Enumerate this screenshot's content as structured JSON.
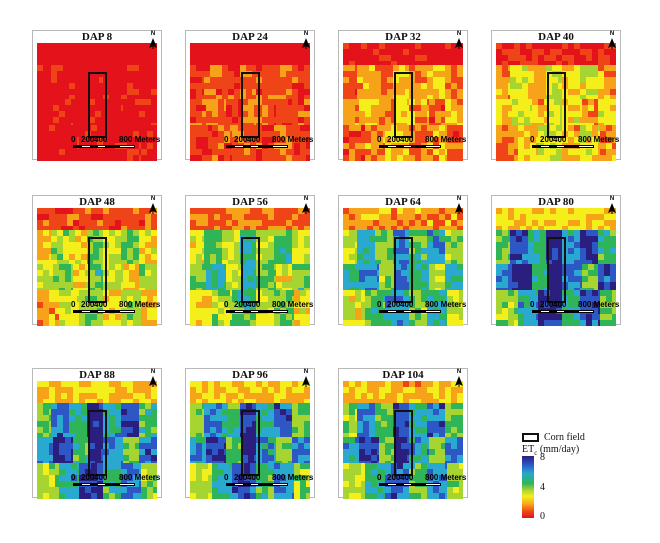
{
  "panels": [
    {
      "title": "DAP 8",
      "mix": 0.05
    },
    {
      "title": "DAP 24",
      "mix": 0.18
    },
    {
      "title": "DAP 32",
      "mix": 0.28
    },
    {
      "title": "DAP 40",
      "mix": 0.38
    },
    {
      "title": "DAP 48",
      "mix": 0.48
    },
    {
      "title": "DAP 56",
      "mix": 0.56
    },
    {
      "title": "DAP 64",
      "mix": 0.66
    },
    {
      "title": "DAP 80",
      "mix": 0.82
    },
    {
      "title": "DAP 88",
      "mix": 0.78
    },
    {
      "title": "DAP 96",
      "mix": 0.76
    },
    {
      "title": "DAP 104",
      "mix": 0.74
    }
  ],
  "north_label": "N",
  "scale": {
    "labels": [
      "0",
      "200",
      "400",
      "800 Meters"
    ]
  },
  "legend": {
    "boundary_label": "Corn field",
    "title": "ET",
    "title_sub": "c",
    "title_unit": "(mm/day)",
    "ticks": [
      "8",
      "4",
      "0"
    ]
  },
  "colors": {
    "ramp": [
      "#e4121b",
      "#ef4318",
      "#f7a31a",
      "#f4ee1b",
      "#a6d531",
      "#2fb457",
      "#29a8d0",
      "#2d57c4",
      "#2a1f7f"
    ],
    "corn_field_outline": "#111111"
  }
}
